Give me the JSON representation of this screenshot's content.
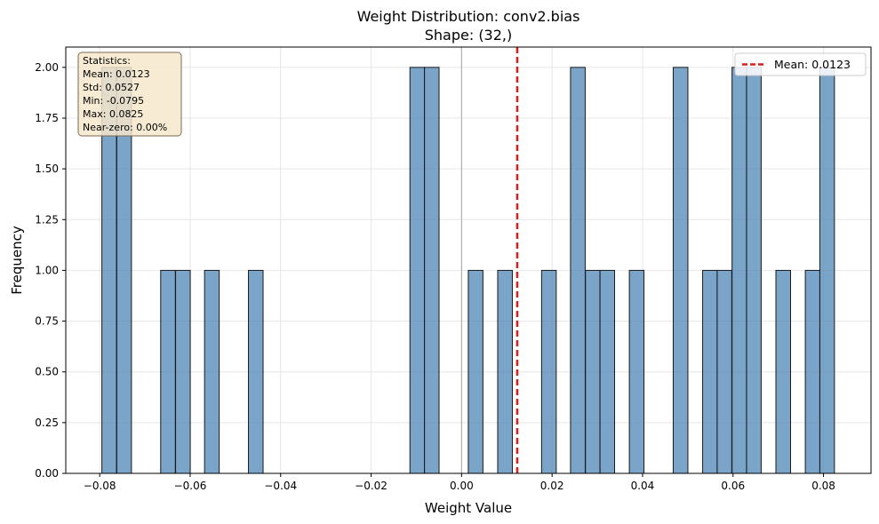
{
  "chart_data": {
    "type": "bar",
    "title": "Weight Distribution: conv2.bias",
    "subtitle": "Shape: (32,)",
    "xlabel": "Weight Value",
    "ylabel": "Frequency",
    "xlim": [
      -0.0875,
      0.0905
    ],
    "ylim": [
      0,
      2.1
    ],
    "grid": true,
    "bar_color": "#4f86b7",
    "bar_edge_color": "#1a1a1a",
    "bin_width": 0.00324,
    "bins": [
      {
        "x": -0.0779,
        "count": 2
      },
      {
        "x": -0.0746,
        "count": 2
      },
      {
        "x": -0.0649,
        "count": 1
      },
      {
        "x": -0.0616,
        "count": 1
      },
      {
        "x": -0.0552,
        "count": 1
      },
      {
        "x": -0.0455,
        "count": 1
      },
      {
        "x": -0.0098,
        "count": 2
      },
      {
        "x": -0.0066,
        "count": 2
      },
      {
        "x": 0.0031,
        "count": 1
      },
      {
        "x": 0.0096,
        "count": 1
      },
      {
        "x": 0.0193,
        "count": 1
      },
      {
        "x": 0.0257,
        "count": 2
      },
      {
        "x": 0.029,
        "count": 1
      },
      {
        "x": 0.0322,
        "count": 1
      },
      {
        "x": 0.0387,
        "count": 1
      },
      {
        "x": 0.0484,
        "count": 2
      },
      {
        "x": 0.0549,
        "count": 1
      },
      {
        "x": 0.0581,
        "count": 1
      },
      {
        "x": 0.0614,
        "count": 2
      },
      {
        "x": 0.0646,
        "count": 2
      },
      {
        "x": 0.0711,
        "count": 1
      },
      {
        "x": 0.0776,
        "count": 1
      },
      {
        "x": 0.0808,
        "count": 2
      }
    ],
    "x_ticks": [
      {
        "value": -0.08,
        "label": "−0.08"
      },
      {
        "value": -0.06,
        "label": "−0.06"
      },
      {
        "value": -0.04,
        "label": "−0.04"
      },
      {
        "value": -0.02,
        "label": "−0.02"
      },
      {
        "value": 0.0,
        "label": "0.00"
      },
      {
        "value": 0.02,
        "label": "0.02"
      },
      {
        "value": 0.04,
        "label": "0.04"
      },
      {
        "value": 0.06,
        "label": "0.06"
      },
      {
        "value": 0.08,
        "label": "0.08"
      }
    ],
    "y_ticks": [
      {
        "value": 0.0,
        "label": "0.00"
      },
      {
        "value": 0.25,
        "label": "0.25"
      },
      {
        "value": 0.5,
        "label": "0.50"
      },
      {
        "value": 0.75,
        "label": "0.75"
      },
      {
        "value": 1.0,
        "label": "1.00"
      },
      {
        "value": 1.25,
        "label": "1.25"
      },
      {
        "value": 1.5,
        "label": "1.50"
      },
      {
        "value": 1.75,
        "label": "1.75"
      },
      {
        "value": 2.0,
        "label": "2.00"
      }
    ],
    "zero_line": {
      "x": 0.0,
      "color": "#b0b0b0"
    },
    "mean_line": {
      "x": 0.0123,
      "color": "#dd1c1c",
      "style": "dashed"
    },
    "legend": {
      "entry": "Mean: 0.0123",
      "placement": "top-right"
    },
    "stats_box": {
      "placement": "top-left",
      "lines": [
        "Statistics:",
        "Mean: 0.0123",
        "Std: 0.0527",
        "Min: -0.0795",
        "Max: 0.0825",
        "Near-zero: 0.00%"
      ],
      "fill": "#f7e8cc",
      "edge": "#7a6a55"
    }
  }
}
